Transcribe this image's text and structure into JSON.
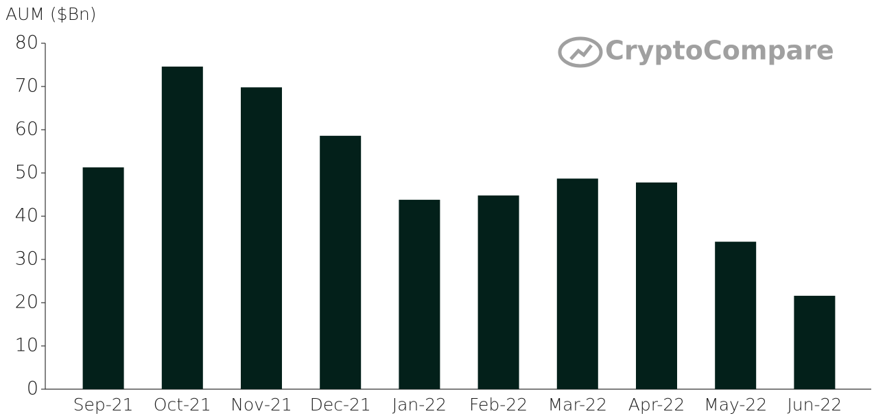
{
  "chart_data": {
    "type": "bar",
    "y_axis_label": "AUM ($Bn)",
    "watermark": "CryptoCompare",
    "categories": [
      "Sep-21",
      "Oct-21",
      "Nov-21",
      "Dec-21",
      "Jan-22",
      "Feb-22",
      "Mar-22",
      "Apr-22",
      "May-22",
      "Jun-22"
    ],
    "values": [
      51.3,
      74.6,
      69.8,
      58.6,
      43.8,
      44.8,
      48.7,
      47.8,
      34.1,
      21.6
    ],
    "color": "#03201a",
    "ylim": [
      0,
      80
    ],
    "yticks": [
      0,
      10,
      20,
      30,
      40,
      50,
      60,
      70,
      80
    ],
    "grid": false
  }
}
